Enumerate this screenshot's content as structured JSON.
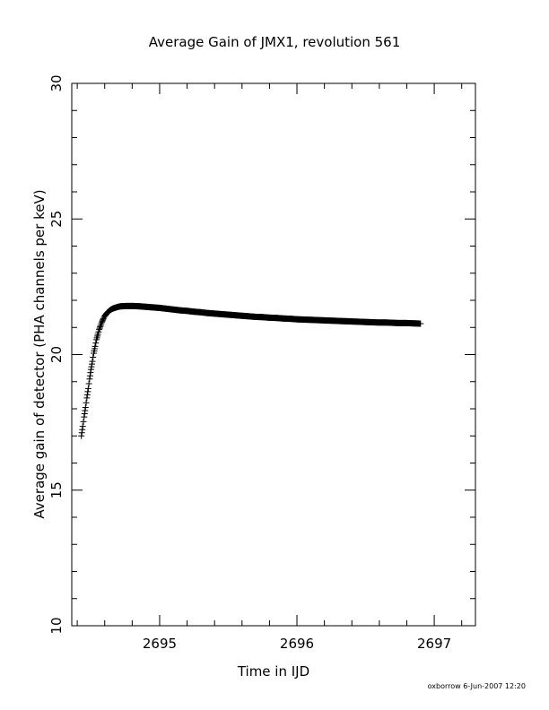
{
  "chart_data": {
    "type": "scatter",
    "title": "Average Gain of JMX1, revolution 561",
    "xlabel": "Time in IJD",
    "ylabel": "Average gain of detector (PHA channels per keV)",
    "xlim": [
      2694.36,
      2697.3
    ],
    "ylim": [
      10,
      30
    ],
    "x_ticks": [
      2695,
      2696,
      2697
    ],
    "y_ticks": [
      10,
      15,
      20,
      25,
      30
    ],
    "marker": "+",
    "color": "#000000",
    "grid": false,
    "series": [
      {
        "points": [
          [
            2694.43,
            17.0
          ],
          [
            2694.44,
            17.35
          ],
          [
            2694.45,
            17.7
          ],
          [
            2694.46,
            18.05
          ],
          [
            2694.47,
            18.4
          ],
          [
            2694.48,
            18.75
          ],
          [
            2694.49,
            19.1
          ],
          [
            2694.5,
            19.45
          ],
          [
            2694.51,
            19.75
          ],
          [
            2694.52,
            20.05
          ],
          [
            2694.53,
            20.3
          ],
          [
            2694.54,
            20.55
          ],
          [
            2694.55,
            20.75
          ],
          [
            2694.56,
            20.92
          ],
          [
            2694.57,
            21.07
          ],
          [
            2694.58,
            21.2
          ],
          [
            2694.59,
            21.32
          ],
          [
            2694.6,
            21.42
          ],
          [
            2694.62,
            21.55
          ],
          [
            2694.64,
            21.64
          ],
          [
            2694.66,
            21.7
          ],
          [
            2694.69,
            21.75
          ],
          [
            2694.72,
            21.78
          ],
          [
            2694.76,
            21.79
          ],
          [
            2694.8,
            21.79
          ],
          [
            2694.85,
            21.78
          ],
          [
            2694.9,
            21.76
          ],
          [
            2694.95,
            21.74
          ],
          [
            2695.0,
            21.72
          ],
          [
            2695.05,
            21.69
          ],
          [
            2695.1,
            21.66
          ],
          [
            2695.15,
            21.63
          ],
          [
            2695.2,
            21.61
          ],
          [
            2695.25,
            21.58
          ],
          [
            2695.3,
            21.56
          ],
          [
            2695.35,
            21.53
          ],
          [
            2695.4,
            21.51
          ],
          [
            2695.45,
            21.49
          ],
          [
            2695.5,
            21.47
          ],
          [
            2695.55,
            21.45
          ],
          [
            2695.6,
            21.43
          ],
          [
            2695.65,
            21.41
          ],
          [
            2695.7,
            21.39
          ],
          [
            2695.75,
            21.38
          ],
          [
            2695.8,
            21.36
          ],
          [
            2695.85,
            21.35
          ],
          [
            2695.9,
            21.33
          ],
          [
            2695.95,
            21.32
          ],
          [
            2696.0,
            21.3
          ],
          [
            2696.05,
            21.29
          ],
          [
            2696.1,
            21.28
          ],
          [
            2696.15,
            21.27
          ],
          [
            2696.2,
            21.26
          ],
          [
            2696.25,
            21.25
          ],
          [
            2696.3,
            21.24
          ],
          [
            2696.35,
            21.23
          ],
          [
            2696.4,
            21.22
          ],
          [
            2696.45,
            21.21
          ],
          [
            2696.5,
            21.2
          ],
          [
            2696.55,
            21.19
          ],
          [
            2696.6,
            21.18
          ],
          [
            2696.65,
            21.18
          ],
          [
            2696.7,
            21.17
          ],
          [
            2696.75,
            21.16
          ],
          [
            2696.8,
            21.16
          ],
          [
            2696.85,
            21.15
          ],
          [
            2696.9,
            21.14
          ]
        ]
      }
    ]
  },
  "footer": {
    "stamp": "oxborrow   6-Jun-2007 12:20"
  }
}
